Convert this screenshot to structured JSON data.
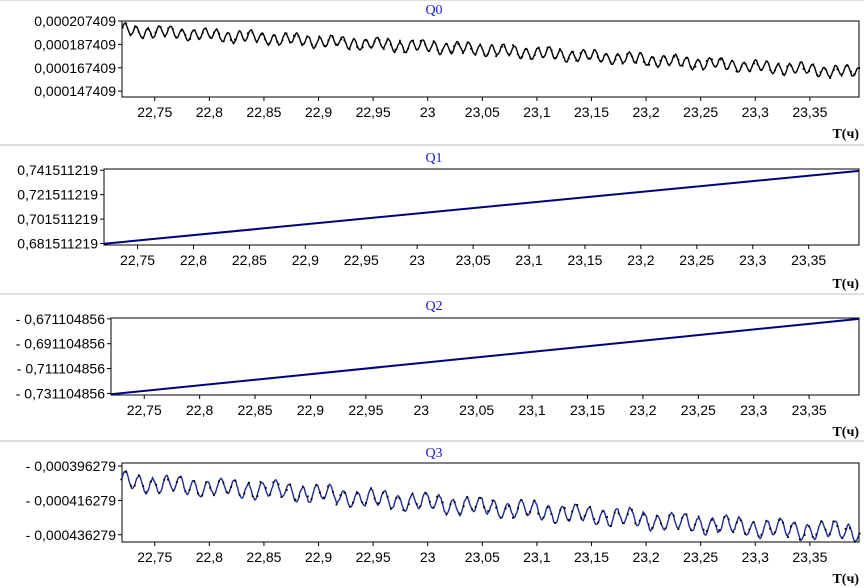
{
  "chart_data": [
    {
      "type": "line",
      "title": "Q0",
      "xlabel": "T(ч)",
      "ylabel": "",
      "xlim": [
        22.72,
        23.395
      ],
      "ylim": [
        0.0001424,
        0.0002074
      ],
      "x_ticks": [
        22.75,
        22.8,
        22.85,
        22.9,
        22.95,
        23,
        23.05,
        23.1,
        23.15,
        23.2,
        23.25,
        23.3,
        23.35
      ],
      "x_tick_labels": [
        "22,75",
        "22,8",
        "22,85",
        "22,9",
        "22,95",
        "23",
        "23,05",
        "23,1",
        "23,15",
        "23,2",
        "23,25",
        "23,3",
        "23,35"
      ],
      "y_ticks": [
        0.000207409,
        0.000187409,
        0.000167409,
        0.000147409
      ],
      "y_tick_labels": [
        "0,000207409",
        "0,000187409",
        "0,000167409",
        "0,000147409"
      ],
      "line_color": "#000000",
      "markers": true,
      "series": [
        {
          "x": [
            22.72,
            22.745,
            22.775,
            22.8,
            22.825,
            22.85,
            22.875,
            22.9,
            22.925,
            22.95,
            22.975,
            23,
            23.025,
            23.05,
            23.075,
            23.1,
            23.125,
            23.15,
            23.175,
            23.2,
            23.225,
            23.25,
            23.275,
            23.3,
            23.325,
            23.35,
            23.375,
            23.395
          ],
          "trend": [
            0.0001995,
            0.0001982,
            0.000197,
            0.0001955,
            0.0001942,
            0.000193,
            0.0001915,
            0.00019,
            0.000189,
            0.0001878,
            0.0001862,
            0.0001855,
            0.0001845,
            0.000183,
            0.0001815,
            0.00018,
            0.0001785,
            0.000177,
            0.0001758,
            0.0001745,
            0.0001728,
            0.0001715,
            0.00017,
            0.0001685,
            0.0001672,
            0.000166,
            0.0001645,
            0.0001635
          ],
          "oscillation_amplitude": 4.5e-06,
          "oscillation_period": 0.0105
        }
      ]
    },
    {
      "type": "line",
      "title": "Q1",
      "xlabel": "T(ч)",
      "ylabel": "",
      "xlim": [
        22.72,
        23.395
      ],
      "ylim": [
        0.6803,
        0.7425
      ],
      "x_ticks": [
        22.75,
        22.8,
        22.85,
        22.9,
        22.95,
        23,
        23.05,
        23.1,
        23.15,
        23.2,
        23.25,
        23.3,
        23.35
      ],
      "x_tick_labels": [
        "22,75",
        "22,8",
        "22,85",
        "22,9",
        "22,95",
        "23",
        "23,05",
        "23,1",
        "23,15",
        "23,2",
        "23,25",
        "23,3",
        "23,35"
      ],
      "y_ticks": [
        0.741511219,
        0.721511219,
        0.701511219,
        0.681511219
      ],
      "y_tick_labels": [
        "0,741511219",
        "0,721511219",
        "0,701511219",
        "0,681511219"
      ],
      "line_color": "#000080",
      "markers": false,
      "series": [
        {
          "x": [
            22.72,
            23.395
          ],
          "y": [
            0.6813,
            0.741
          ]
        }
      ]
    },
    {
      "type": "line",
      "title": "Q2",
      "xlabel": "T(ч)",
      "ylabel": "",
      "xlim": [
        22.72,
        23.395
      ],
      "ylim": [
        -0.7324,
        -0.6704
      ],
      "x_ticks": [
        22.75,
        22.8,
        22.85,
        22.9,
        22.95,
        23,
        23.05,
        23.1,
        23.15,
        23.2,
        23.25,
        23.3,
        23.35
      ],
      "x_tick_labels": [
        "22,75",
        "22,8",
        "22,85",
        "22,9",
        "22,95",
        "23",
        "23,05",
        "23,1",
        "23,15",
        "23,2",
        "23,25",
        "23,3",
        "23,35"
      ],
      "y_ticks": [
        -0.671104856,
        -0.691104856,
        -0.711104856,
        -0.731104856
      ],
      "y_tick_labels": [
        "- 0,671104856",
        "- 0,691104856",
        "- 0,711104856",
        "- 0,731104856"
      ],
      "line_color": "#000080",
      "markers": false,
      "series": [
        {
          "x": [
            22.72,
            23.395
          ],
          "y": [
            -0.7318,
            -0.6711
          ]
        }
      ]
    },
    {
      "type": "line",
      "title": "Q3",
      "xlabel": "T(ч)",
      "ylabel": "",
      "xlim": [
        22.72,
        23.395
      ],
      "ylim": [
        -0.0004405,
        -0.0003945
      ],
      "x_ticks": [
        22.75,
        22.8,
        22.85,
        22.9,
        22.95,
        23,
        23.05,
        23.1,
        23.15,
        23.2,
        23.25,
        23.3,
        23.35
      ],
      "x_tick_labels": [
        "22,75",
        "22,8",
        "22,85",
        "22,9",
        "22,95",
        "23",
        "23,05",
        "23,1",
        "23,15",
        "23,2",
        "23,25",
        "23,3",
        "23,35"
      ],
      "y_ticks": [
        -0.000396279,
        -0.000416279,
        -0.000436279
      ],
      "y_tick_labels": [
        "- 0,000396279",
        "- 0,000416279",
        "- 0,000436279"
      ],
      "line_color": "#1e2a9a",
      "markers": true,
      "series": [
        {
          "x": [
            22.72,
            22.745,
            22.775,
            22.8,
            22.825,
            22.85,
            22.875,
            22.9,
            22.925,
            22.95,
            22.975,
            23,
            23.025,
            23.05,
            23.075,
            23.1,
            23.125,
            23.15,
            23.175,
            23.2,
            23.225,
            23.25,
            23.275,
            23.3,
            23.325,
            23.35,
            23.375,
            23.395
          ],
          "trend": [
            -0.000405,
            -0.0004065,
            -0.000408,
            -0.0004085,
            -0.0004095,
            -0.00041,
            -0.000411,
            -0.0004125,
            -0.000414,
            -0.0004155,
            -0.0004165,
            -0.0004175,
            -0.000419,
            -0.00042,
            -0.000421,
            -0.0004225,
            -0.000424,
            -0.000425,
            -0.000426,
            -0.0004275,
            -0.000429,
            -0.00043,
            -0.000431,
            -0.000432,
            -0.000433,
            -0.0004335,
            -0.000434,
            -0.0004345
          ],
          "oscillation_amplitude": 4.5e-06,
          "oscillation_period": 0.0125
        }
      ]
    }
  ]
}
